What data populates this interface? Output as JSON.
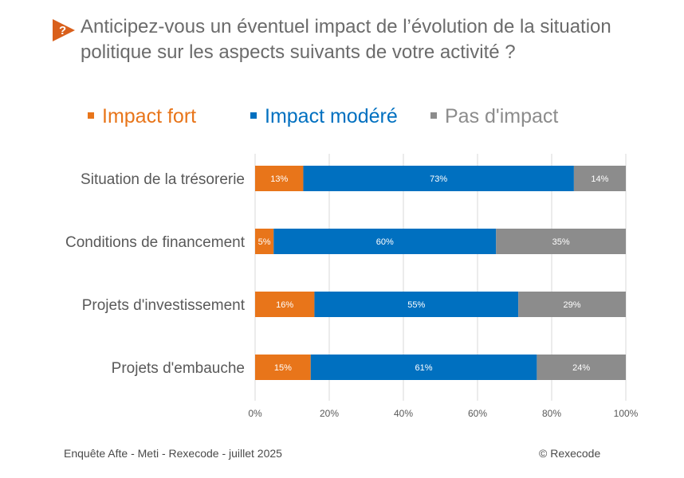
{
  "title": "Anticipez-vous un éventuel impact de l’évolution de la situation politique sur les aspects suivants de votre activité ?",
  "footer": {
    "source": "Enquête Afte - Meti - Rexecode - juillet 2025",
    "copyright": "© Rexecode"
  },
  "colors": {
    "fort": "#E8751A",
    "modere": "#0070C0",
    "pas": "#8C8C8C",
    "title": "#6b6b6b",
    "icon": "#D9601C"
  },
  "icon": "question-mark-icon",
  "chart_data": {
    "type": "bar",
    "orientation": "horizontal",
    "stacked": "percent",
    "categories": [
      "Situation de la trésorerie",
      "Conditions de financement",
      "Projets d'investissement",
      "Projets d'embauche"
    ],
    "series": [
      {
        "name": "Impact fort",
        "values": [
          13,
          5,
          16,
          15
        ],
        "labels": [
          "13%",
          "5%",
          "16%",
          "15%"
        ]
      },
      {
        "name": "Impact modéré",
        "values": [
          73,
          60,
          55,
          61
        ],
        "labels": [
          "73%",
          "60%",
          "55%",
          "61%"
        ]
      },
      {
        "name": "Pas d'impact",
        "values": [
          14,
          35,
          29,
          24
        ],
        "labels": [
          "14%",
          "35%",
          "29%",
          "24%"
        ]
      }
    ],
    "xlim": [
      0,
      100
    ],
    "xticks": [
      "0%",
      "20%",
      "40%",
      "60%",
      "80%",
      "100%"
    ],
    "grid": "vertical",
    "legend": "top"
  }
}
